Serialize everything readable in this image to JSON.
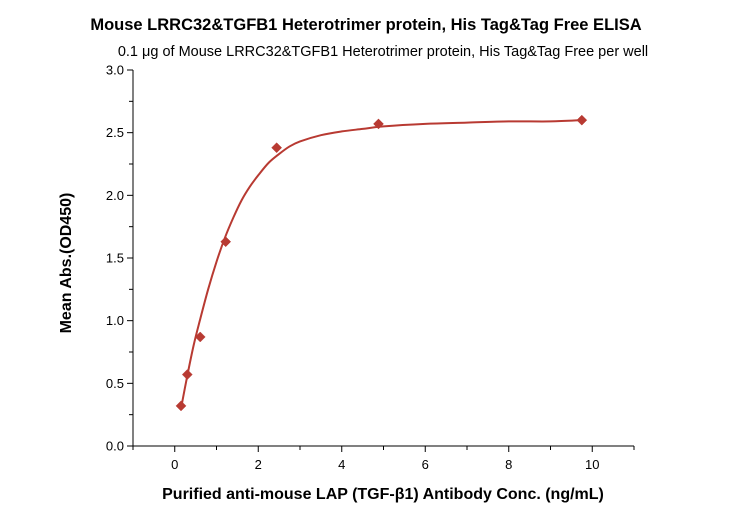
{
  "chart_data": {
    "type": "scatter",
    "title": "Mouse LRRC32&TGFB1 Heterotrimer protein, His Tag&Tag Free ELISA",
    "subtitle": "0.1 μg of Mouse LRRC32&TGFB1 Heterotrimer protein, His Tag&Tag Free per well",
    "xlabel": "Purified anti-mouse LAP (TGF-β1) Antibody Conc. (ng/mL)",
    "ylabel": "Mean Abs.(OD450)",
    "xlim": [
      -1,
      11
    ],
    "ylim": [
      0,
      3
    ],
    "x_ticks": [
      0,
      2,
      4,
      6,
      8,
      10
    ],
    "y_ticks": [
      "0.0",
      "0.5",
      "1.0",
      "1.5",
      "2.0",
      "2.5",
      "3.0"
    ],
    "grid": false,
    "legend": "none",
    "series": [
      {
        "points": [
          {
            "x": 0.15,
            "y": 0.32
          },
          {
            "x": 0.3,
            "y": 0.57
          },
          {
            "x": 0.61,
            "y": 0.87
          },
          {
            "x": 1.22,
            "y": 1.63
          },
          {
            "x": 2.44,
            "y": 2.38
          },
          {
            "x": 4.88,
            "y": 2.57
          },
          {
            "x": 9.75,
            "y": 2.6
          }
        ],
        "marker": "diamond",
        "color": "#b83a32"
      }
    ],
    "fit_curve": {
      "color": "#b83a32",
      "x": [
        0.15,
        0.3,
        0.45,
        0.6,
        0.8,
        1.0,
        1.2,
        1.4,
        1.6,
        1.8,
        2.0,
        2.25,
        2.5,
        2.75,
        3.0,
        3.5,
        4.0,
        4.5,
        5.0,
        6.0,
        7.0,
        8.0,
        9.0,
        9.75
      ],
      "y": [
        0.3,
        0.56,
        0.8,
        1.0,
        1.25,
        1.47,
        1.66,
        1.82,
        1.96,
        2.07,
        2.16,
        2.26,
        2.33,
        2.39,
        2.43,
        2.48,
        2.51,
        2.53,
        2.55,
        2.57,
        2.58,
        2.59,
        2.59,
        2.6
      ]
    }
  }
}
